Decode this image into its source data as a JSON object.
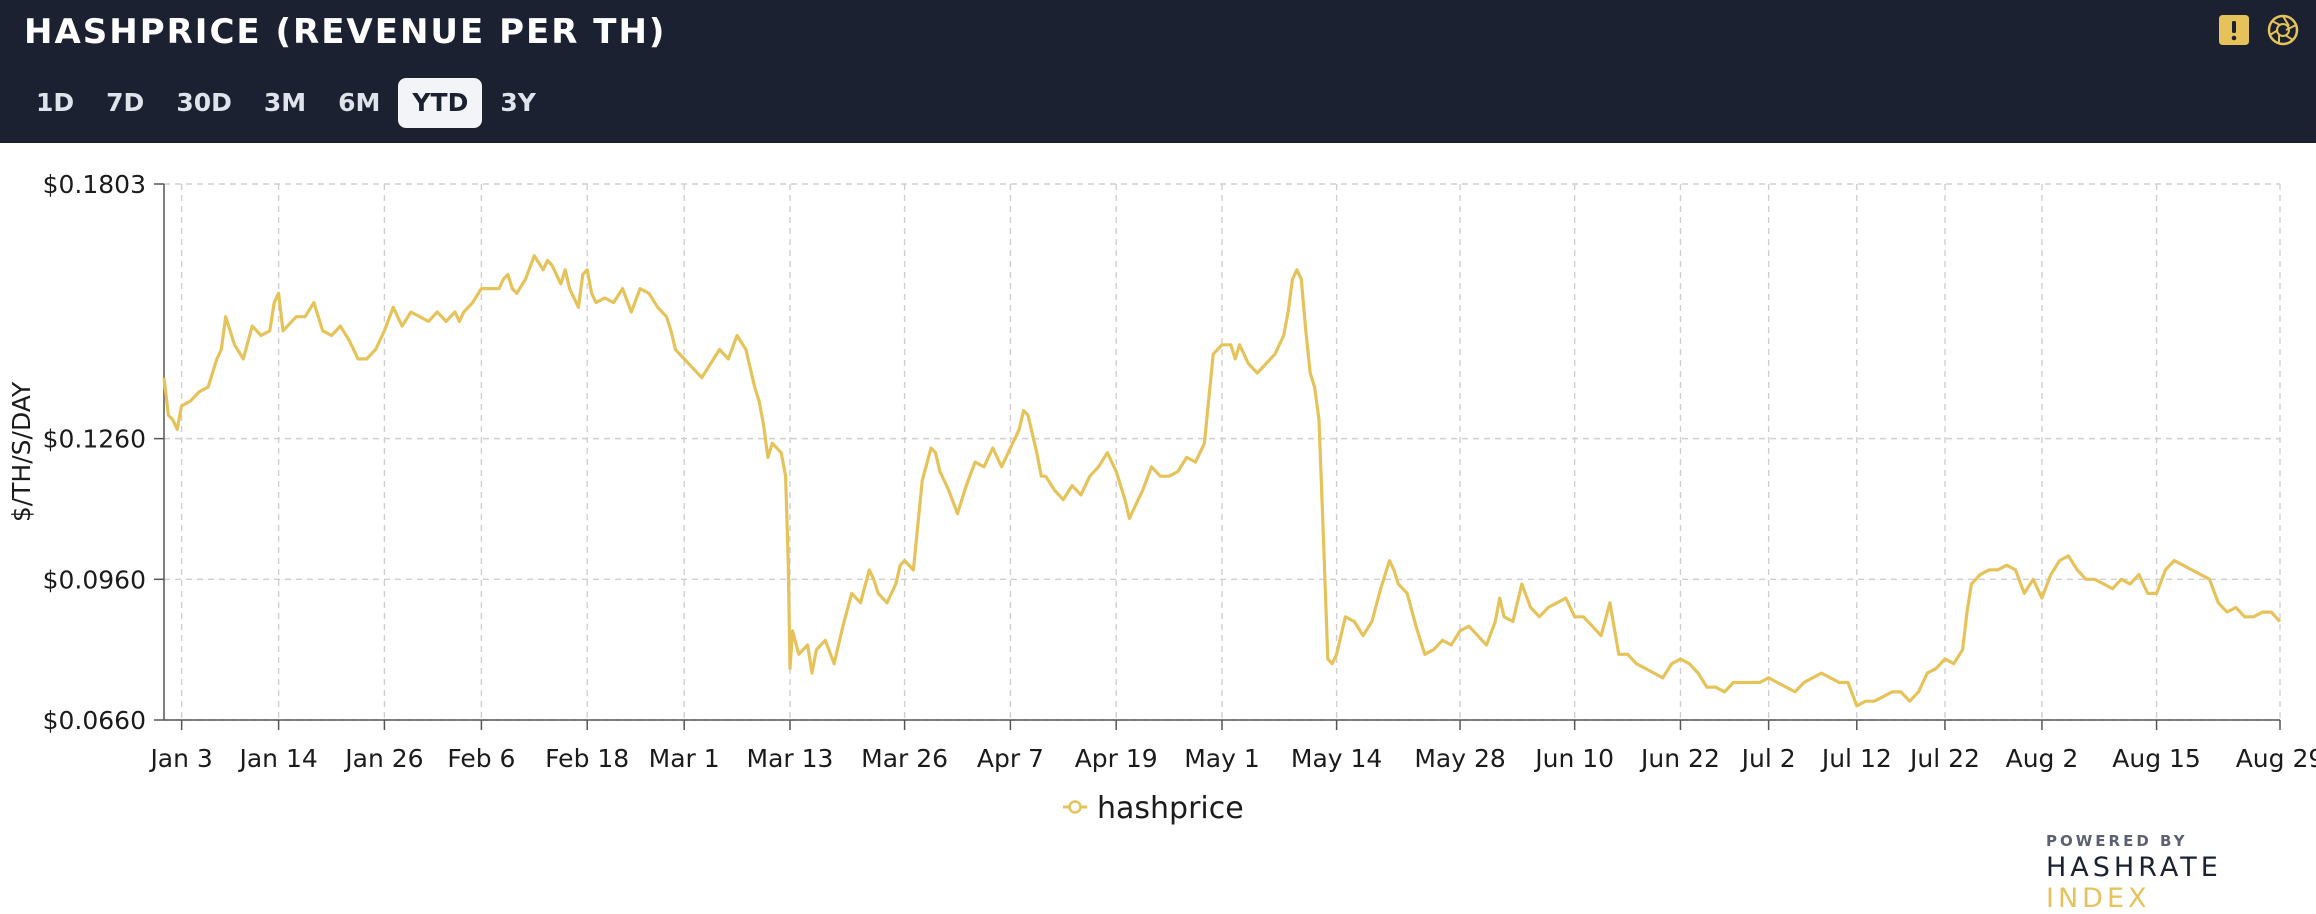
{
  "header": {
    "title": "HASHPRICE (REVENUE PER TH)",
    "ranges": [
      "1D",
      "7D",
      "30D",
      "3M",
      "6M",
      "YTD",
      "3Y"
    ],
    "active_range": "YTD",
    "icons": [
      "alert-icon",
      "camera-shutter-icon"
    ]
  },
  "colors": {
    "header_bg": "#1b2130",
    "series": "#e6c35a",
    "grid": "#cfcfcf",
    "accent_icon": "#e6c35a"
  },
  "chart_data": {
    "type": "line",
    "title": "",
    "ylabel": "$/TH/S/DAY",
    "xlabel": "",
    "ylim": [
      0.066,
      0.1803
    ],
    "y_ticks": [
      {
        "value": 0.1803,
        "label": "$0.1803"
      },
      {
        "value": 0.126,
        "label": "$0.1260"
      },
      {
        "value": 0.096,
        "label": "$0.0960"
      },
      {
        "value": 0.066,
        "label": "$0.0660"
      }
    ],
    "x_ticks": [
      {
        "day": 3,
        "label": "Jan 3"
      },
      {
        "day": 14,
        "label": "Jan 14"
      },
      {
        "day": 26,
        "label": "Jan 26"
      },
      {
        "day": 37,
        "label": "Feb 6"
      },
      {
        "day": 49,
        "label": "Feb 18"
      },
      {
        "day": 60,
        "label": "Mar 1"
      },
      {
        "day": 72,
        "label": "Mar 13"
      },
      {
        "day": 85,
        "label": "Mar 26"
      },
      {
        "day": 97,
        "label": "Apr 7"
      },
      {
        "day": 109,
        "label": "Apr 19"
      },
      {
        "day": 121,
        "label": "May 1"
      },
      {
        "day": 134,
        "label": "May 14"
      },
      {
        "day": 148,
        "label": "May 28"
      },
      {
        "day": 161,
        "label": "Jun 10"
      },
      {
        "day": 173,
        "label": "Jun 22"
      },
      {
        "day": 183,
        "label": "Jul 2"
      },
      {
        "day": 193,
        "label": "Jul 12"
      },
      {
        "day": 203,
        "label": "Jul 22"
      },
      {
        "day": 214,
        "label": "Aug 2"
      },
      {
        "day": 227,
        "label": "Aug 15"
      },
      {
        "day": 241,
        "label": "Aug 29"
      }
    ],
    "x_range": [
      1,
      241
    ],
    "grid": true,
    "legend": "bottom-center",
    "series": [
      {
        "name": "hashprice",
        "x_unit": "day of year",
        "points": [
          [
            1,
            0.139
          ],
          [
            1.5,
            0.131
          ],
          [
            2,
            0.13
          ],
          [
            2.5,
            0.128
          ],
          [
            3,
            0.133
          ],
          [
            4,
            0.134
          ],
          [
            5,
            0.136
          ],
          [
            6,
            0.137
          ],
          [
            7,
            0.143
          ],
          [
            7.5,
            0.145
          ],
          [
            8,
            0.152
          ],
          [
            9,
            0.146
          ],
          [
            10,
            0.143
          ],
          [
            11,
            0.15
          ],
          [
            12,
            0.148
          ],
          [
            13,
            0.149
          ],
          [
            13.5,
            0.155
          ],
          [
            14,
            0.157
          ],
          [
            14.5,
            0.149
          ],
          [
            15,
            0.15
          ],
          [
            16,
            0.152
          ],
          [
            17,
            0.152
          ],
          [
            18,
            0.155
          ],
          [
            18.5,
            0.152
          ],
          [
            19,
            0.149
          ],
          [
            20,
            0.148
          ],
          [
            21,
            0.15
          ],
          [
            22,
            0.147
          ],
          [
            22.5,
            0.145
          ],
          [
            23,
            0.143
          ],
          [
            24,
            0.143
          ],
          [
            25,
            0.145
          ],
          [
            26,
            0.149
          ],
          [
            27,
            0.154
          ],
          [
            28,
            0.15
          ],
          [
            29,
            0.153
          ],
          [
            30,
            0.152
          ],
          [
            31,
            0.151
          ],
          [
            32,
            0.153
          ],
          [
            33,
            0.151
          ],
          [
            34,
            0.153
          ],
          [
            34.5,
            0.151
          ],
          [
            35,
            0.153
          ],
          [
            36,
            0.155
          ],
          [
            37,
            0.158
          ],
          [
            38,
            0.158
          ],
          [
            39,
            0.158
          ],
          [
            39.5,
            0.16
          ],
          [
            40,
            0.161
          ],
          [
            40.5,
            0.158
          ],
          [
            41,
            0.157
          ],
          [
            42,
            0.16
          ],
          [
            43,
            0.165
          ],
          [
            44,
            0.162
          ],
          [
            44.5,
            0.164
          ],
          [
            45,
            0.163
          ],
          [
            46,
            0.159
          ],
          [
            46.5,
            0.162
          ],
          [
            47,
            0.158
          ],
          [
            48,
            0.154
          ],
          [
            48.5,
            0.161
          ],
          [
            49,
            0.162
          ],
          [
            49.5,
            0.157
          ],
          [
            50,
            0.155
          ],
          [
            51,
            0.156
          ],
          [
            52,
            0.155
          ],
          [
            53,
            0.158
          ],
          [
            54,
            0.153
          ],
          [
            55,
            0.158
          ],
          [
            56,
            0.157
          ],
          [
            57,
            0.154
          ],
          [
            58,
            0.152
          ],
          [
            58.5,
            0.149
          ],
          [
            59,
            0.145
          ],
          [
            60,
            0.143
          ],
          [
            61,
            0.141
          ],
          [
            62,
            0.139
          ],
          [
            63,
            0.142
          ],
          [
            64,
            0.145
          ],
          [
            65,
            0.143
          ],
          [
            66,
            0.148
          ],
          [
            67,
            0.145
          ],
          [
            68,
            0.137
          ],
          [
            68.5,
            0.134
          ],
          [
            69,
            0.129
          ],
          [
            69.5,
            0.122
          ],
          [
            70,
            0.125
          ],
          [
            71,
            0.123
          ],
          [
            71.5,
            0.118
          ],
          [
            71.8,
            0.1
          ],
          [
            72,
            0.077
          ],
          [
            72.3,
            0.085
          ],
          [
            73,
            0.08
          ],
          [
            74,
            0.082
          ],
          [
            74.5,
            0.076
          ],
          [
            75,
            0.081
          ],
          [
            76,
            0.083
          ],
          [
            77,
            0.078
          ],
          [
            78,
            0.086
          ],
          [
            79,
            0.093
          ],
          [
            80,
            0.091
          ],
          [
            81,
            0.098
          ],
          [
            81.5,
            0.096
          ],
          [
            82,
            0.093
          ],
          [
            83,
            0.091
          ],
          [
            84,
            0.095
          ],
          [
            84.5,
            0.099
          ],
          [
            85,
            0.1
          ],
          [
            86,
            0.098
          ],
          [
            87,
            0.117
          ],
          [
            88,
            0.124
          ],
          [
            88.5,
            0.123
          ],
          [
            89,
            0.119
          ],
          [
            90,
            0.115
          ],
          [
            91,
            0.11
          ],
          [
            91.5,
            0.113
          ],
          [
            92,
            0.116
          ],
          [
            93,
            0.121
          ],
          [
            94,
            0.12
          ],
          [
            95,
            0.124
          ],
          [
            96,
            0.12
          ],
          [
            97,
            0.124
          ],
          [
            98,
            0.128
          ],
          [
            98.5,
            0.132
          ],
          [
            99,
            0.131
          ],
          [
            100,
            0.123
          ],
          [
            100.5,
            0.118
          ],
          [
            101,
            0.118
          ],
          [
            102,
            0.115
          ],
          [
            103,
            0.113
          ],
          [
            104,
            0.116
          ],
          [
            105,
            0.114
          ],
          [
            106,
            0.118
          ],
          [
            107,
            0.12
          ],
          [
            108,
            0.123
          ],
          [
            109,
            0.119
          ],
          [
            110,
            0.113
          ],
          [
            110.5,
            0.109
          ],
          [
            111,
            0.111
          ],
          [
            112,
            0.115
          ],
          [
            113,
            0.12
          ],
          [
            114,
            0.118
          ],
          [
            115,
            0.118
          ],
          [
            116,
            0.119
          ],
          [
            117,
            0.122
          ],
          [
            118,
            0.121
          ],
          [
            119,
            0.125
          ],
          [
            120,
            0.144
          ],
          [
            121,
            0.146
          ],
          [
            122,
            0.146
          ],
          [
            122.5,
            0.143
          ],
          [
            123,
            0.146
          ],
          [
            124,
            0.142
          ],
          [
            125,
            0.14
          ],
          [
            126,
            0.142
          ],
          [
            127,
            0.144
          ],
          [
            128,
            0.148
          ],
          [
            128.5,
            0.153
          ],
          [
            129,
            0.16
          ],
          [
            129.5,
            0.162
          ],
          [
            130,
            0.16
          ],
          [
            130.5,
            0.149
          ],
          [
            131,
            0.14
          ],
          [
            131.5,
            0.137
          ],
          [
            132,
            0.13
          ],
          [
            132.5,
            0.105
          ],
          [
            133,
            0.079
          ],
          [
            133.5,
            0.078
          ],
          [
            134,
            0.08
          ],
          [
            135,
            0.088
          ],
          [
            136,
            0.087
          ],
          [
            137,
            0.084
          ],
          [
            138,
            0.087
          ],
          [
            139,
            0.094
          ],
          [
            140,
            0.1
          ],
          [
            140.5,
            0.098
          ],
          [
            141,
            0.095
          ],
          [
            142,
            0.093
          ],
          [
            143,
            0.086
          ],
          [
            144,
            0.08
          ],
          [
            145,
            0.081
          ],
          [
            146,
            0.083
          ],
          [
            147,
            0.082
          ],
          [
            148,
            0.085
          ],
          [
            149,
            0.086
          ],
          [
            150,
            0.084
          ],
          [
            151,
            0.082
          ],
          [
            152,
            0.087
          ],
          [
            152.5,
            0.092
          ],
          [
            153,
            0.088
          ],
          [
            154,
            0.087
          ],
          [
            155,
            0.095
          ],
          [
            156,
            0.09
          ],
          [
            157,
            0.088
          ],
          [
            158,
            0.09
          ],
          [
            159,
            0.091
          ],
          [
            160,
            0.092
          ],
          [
            161,
            0.088
          ],
          [
            162,
            0.088
          ],
          [
            163,
            0.086
          ],
          [
            164,
            0.084
          ],
          [
            165,
            0.091
          ],
          [
            166,
            0.08
          ],
          [
            167,
            0.08
          ],
          [
            168,
            0.078
          ],
          [
            169,
            0.077
          ],
          [
            170,
            0.076
          ],
          [
            171,
            0.075
          ],
          [
            172,
            0.078
          ],
          [
            173,
            0.079
          ],
          [
            174,
            0.078
          ],
          [
            175,
            0.076
          ],
          [
            176,
            0.073
          ],
          [
            177,
            0.073
          ],
          [
            178,
            0.072
          ],
          [
            179,
            0.074
          ],
          [
            180,
            0.074
          ],
          [
            181,
            0.074
          ],
          [
            182,
            0.074
          ],
          [
            183,
            0.075
          ],
          [
            184,
            0.074
          ],
          [
            185,
            0.073
          ],
          [
            186,
            0.072
          ],
          [
            187,
            0.074
          ],
          [
            188,
            0.075
          ],
          [
            189,
            0.076
          ],
          [
            190,
            0.075
          ],
          [
            191,
            0.074
          ],
          [
            192,
            0.074
          ],
          [
            193,
            0.069
          ],
          [
            194,
            0.07
          ],
          [
            195,
            0.07
          ],
          [
            196,
            0.071
          ],
          [
            197,
            0.072
          ],
          [
            198,
            0.072
          ],
          [
            199,
            0.07
          ],
          [
            200,
            0.072
          ],
          [
            201,
            0.076
          ],
          [
            202,
            0.077
          ],
          [
            203,
            0.079
          ],
          [
            204,
            0.078
          ],
          [
            205,
            0.081
          ],
          [
            205.5,
            0.089
          ],
          [
            206,
            0.095
          ],
          [
            207,
            0.097
          ],
          [
            208,
            0.098
          ],
          [
            209,
            0.098
          ],
          [
            210,
            0.099
          ],
          [
            211,
            0.098
          ],
          [
            212,
            0.093
          ],
          [
            213,
            0.096
          ],
          [
            214,
            0.092
          ],
          [
            215,
            0.097
          ],
          [
            216,
            0.1
          ],
          [
            217,
            0.101
          ],
          [
            218,
            0.098
          ],
          [
            219,
            0.096
          ],
          [
            220,
            0.096
          ],
          [
            221,
            0.095
          ],
          [
            222,
            0.094
          ],
          [
            223,
            0.096
          ],
          [
            224,
            0.095
          ],
          [
            225,
            0.097
          ],
          [
            226,
            0.093
          ],
          [
            227,
            0.093
          ],
          [
            228,
            0.098
          ],
          [
            229,
            0.1
          ],
          [
            230,
            0.099
          ],
          [
            231,
            0.098
          ],
          [
            232,
            0.097
          ],
          [
            233,
            0.096
          ],
          [
            234,
            0.091
          ],
          [
            235,
            0.089
          ],
          [
            236,
            0.09
          ],
          [
            237,
            0.088
          ],
          [
            238,
            0.088
          ],
          [
            239,
            0.089
          ],
          [
            240,
            0.089
          ],
          [
            241,
            0.087
          ]
        ]
      }
    ]
  },
  "branding": {
    "powered_by": "POWERED BY",
    "name_a": "HASHRATE",
    "name_b": "INDEX"
  }
}
